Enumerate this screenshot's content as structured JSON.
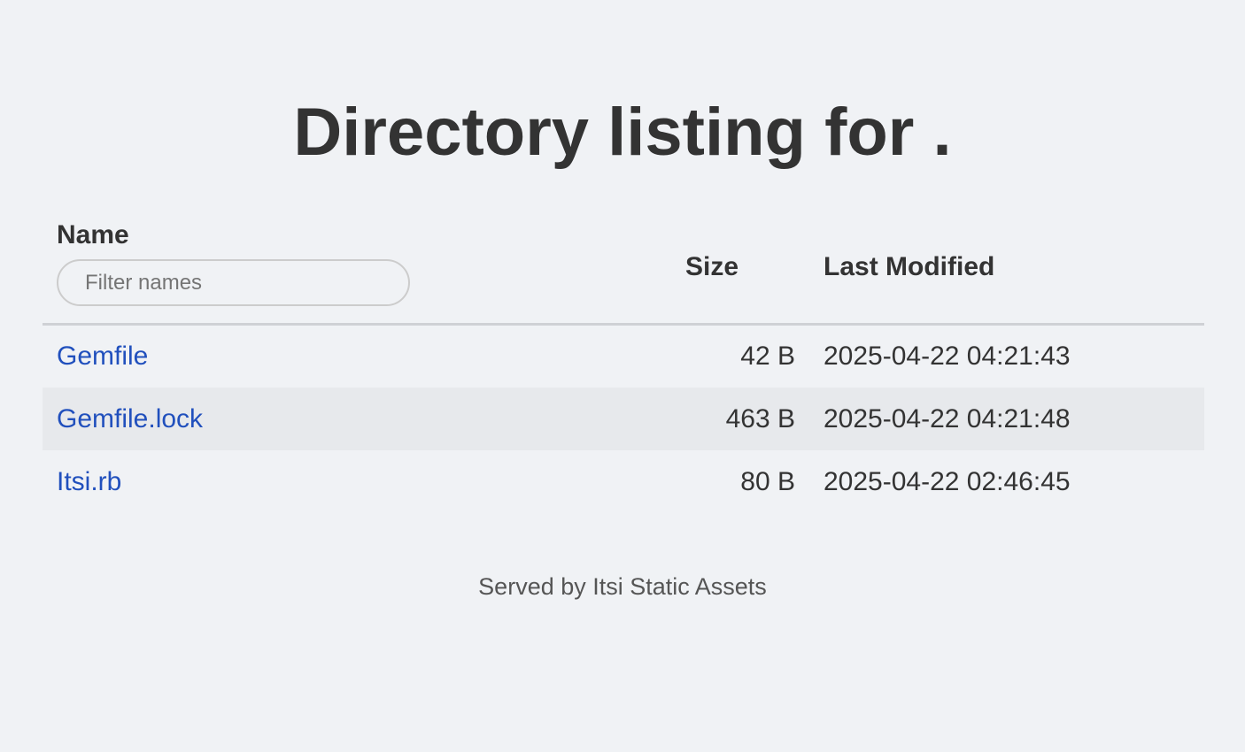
{
  "title": "Directory listing for .",
  "table": {
    "headers": {
      "name": "Name",
      "size": "Size",
      "modified": "Last Modified"
    },
    "filter_placeholder": "Filter names",
    "rows": [
      {
        "name": "Gemfile",
        "size": "42 B",
        "modified": "2025-04-22 04:21:43"
      },
      {
        "name": "Gemfile.lock",
        "size": "463 B",
        "modified": "2025-04-22 04:21:48"
      },
      {
        "name": "Itsi.rb",
        "size": "80 B",
        "modified": "2025-04-22 02:46:45"
      }
    ]
  },
  "footer": "Served by Itsi Static Assets",
  "colors": {
    "background": "#f0f2f5",
    "link": "#2150bd",
    "text": "#333333",
    "stripe": "#e7e9ec"
  }
}
